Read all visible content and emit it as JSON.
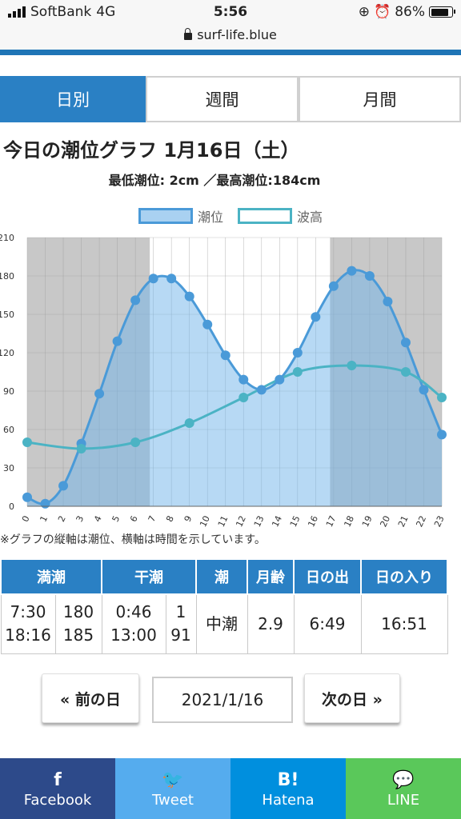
{
  "status": {
    "carrier": "SoftBank",
    "network": "4G",
    "time": "5:56",
    "battery": "86%",
    "battery_level": 0.86
  },
  "browser": {
    "url": "surf-life.blue"
  },
  "tabs": [
    {
      "label": "日別",
      "active": true
    },
    {
      "label": "週間",
      "active": false
    },
    {
      "label": "月間",
      "active": false
    }
  ],
  "page": {
    "title": "今日の潮位グラフ 1月16日（土）",
    "subtitle": "最低潮位: 2cm ／最高潮位:184cm"
  },
  "chart_data": {
    "type": "area",
    "x": [
      0,
      1,
      2,
      3,
      4,
      5,
      6,
      7,
      8,
      9,
      10,
      11,
      12,
      13,
      14,
      15,
      16,
      17,
      18,
      19,
      20,
      21,
      22,
      23
    ],
    "series": [
      {
        "name": "潮位",
        "values": [
          7,
          2,
          16,
          49,
          88,
          129,
          161,
          178,
          178,
          164,
          142,
          118,
          99,
          91,
          99,
          120,
          148,
          172,
          184,
          180,
          160,
          128,
          91,
          56
        ]
      },
      {
        "name": "波高",
        "values": [
          50,
          null,
          null,
          45,
          null,
          null,
          50,
          null,
          null,
          65,
          null,
          null,
          85,
          null,
          null,
          105,
          null,
          null,
          110,
          null,
          null,
          105,
          null,
          85
        ]
      }
    ],
    "ylim": [
      0,
      210
    ],
    "yticks": [
      0,
      30,
      60,
      90,
      120,
      150,
      180,
      210
    ],
    "night_ranges": [
      [
        0,
        6.8
      ],
      [
        16.8,
        23
      ]
    ],
    "grid": true,
    "legend": "top"
  },
  "note": "※グラフの縦軸は潮位、横軸は時間を示しています。",
  "table": {
    "headers": [
      "満潮",
      "干潮",
      "潮",
      "月齢",
      "日の出",
      "日の入り"
    ],
    "high_times": [
      "7:30",
      "18:16"
    ],
    "high_levels": [
      "180",
      "185"
    ],
    "low_times": [
      "0:46",
      "13:00"
    ],
    "low_levels": [
      "1",
      "91"
    ],
    "tide": "中潮",
    "moon_age": "2.9",
    "sunrise": "6:49",
    "sunset": "16:51"
  },
  "pager": {
    "prev": "« 前の日",
    "date": "2021/1/16",
    "next": "次の日 »"
  },
  "share": [
    {
      "label": "Facebook",
      "icon": "f",
      "color": "#2d4a8a"
    },
    {
      "label": "Tweet",
      "icon": "🐦",
      "color": "#55acee"
    },
    {
      "label": "Hatena",
      "icon": "B!",
      "color": "#008fde"
    },
    {
      "label": "LINE",
      "icon": "💬",
      "color": "#5ac85a"
    }
  ]
}
